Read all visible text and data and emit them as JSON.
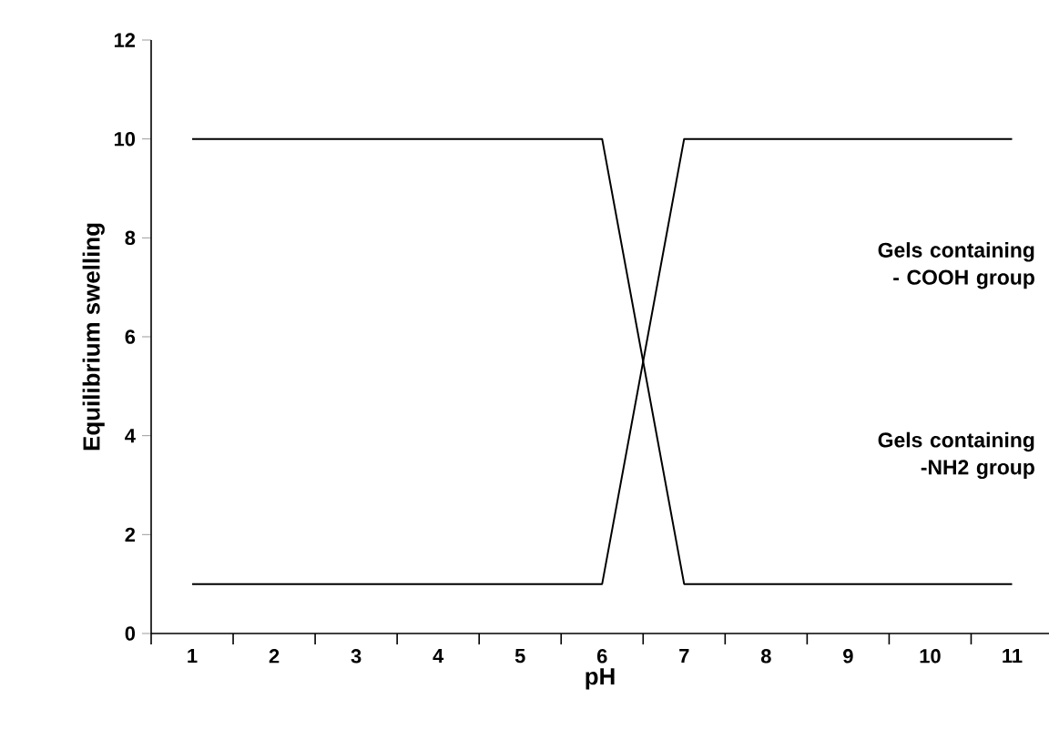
{
  "chart_data": {
    "type": "line",
    "xlabel": "pH",
    "ylabel": "Equilibrium swelling",
    "xlim": [
      0.5,
      11.45
    ],
    "ylim": [
      0,
      12
    ],
    "xticks": [
      1,
      2,
      3,
      4,
      5,
      6,
      7,
      8,
      9,
      10,
      11,
      {
        "value": 0.5,
        "label": null
      },
      {
        "value": 1.5,
        "label": null
      },
      {
        "value": 2.5,
        "label": null
      },
      {
        "value": 3.5,
        "label": null
      },
      {
        "value": 4.5,
        "label": null
      },
      {
        "value": 5.5,
        "label": null
      },
      {
        "value": 6.5,
        "label": null
      },
      {
        "value": 7.5,
        "label": null
      },
      {
        "value": 8.5,
        "label": null
      },
      {
        "value": 9.5,
        "label": null
      },
      {
        "value": 10.5,
        "label": null
      }
    ],
    "yticks": [
      0,
      2,
      4,
      6,
      8,
      10,
      12
    ],
    "grid": false,
    "marker": "none",
    "line_style": "solid",
    "series": [
      {
        "color": "#000000",
        "x": [
          1,
          6,
          7,
          11
        ],
        "values": [
          10,
          10,
          1,
          1
        ]
      },
      {
        "color": "#000000",
        "x": [
          1,
          6,
          7,
          11
        ],
        "values": [
          1,
          1,
          10,
          10
        ]
      }
    ],
    "annotations": [
      "Gels containing - COOH group",
      "Gels containing -NH2 group"
    ]
  }
}
